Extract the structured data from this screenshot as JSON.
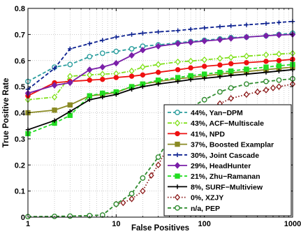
{
  "chart_data": {
    "type": "line",
    "xlabel": "False Positives",
    "ylabel": "True Positive Rate",
    "xscale": "log",
    "xlim": [
      1,
      1000
    ],
    "ylim": [
      0,
      0.8
    ],
    "grid": true,
    "legend_position": "bottom-right",
    "x_ticks": [
      {
        "value": 1,
        "label": "1"
      },
      {
        "value": 10,
        "label": "10"
      },
      {
        "value": 100,
        "label": "100"
      },
      {
        "value": 1000,
        "label": "1000"
      }
    ],
    "y_ticks": [
      {
        "value": 0,
        "label": "0"
      },
      {
        "value": 0.1,
        "label": "0.1"
      },
      {
        "value": 0.2,
        "label": "0.2"
      },
      {
        "value": 0.3,
        "label": "0.3"
      },
      {
        "value": 0.4,
        "label": "0.4"
      },
      {
        "value": 0.5,
        "label": "0.5"
      },
      {
        "value": 0.6,
        "label": "0.6"
      },
      {
        "value": 0.7,
        "label": "0.7"
      },
      {
        "value": 0.8,
        "label": "0.8"
      }
    ],
    "series": [
      {
        "name": "44%, Yan−DPM",
        "color": "#2a9d9d",
        "dash": "dashed",
        "marker": "circle-open",
        "x": [
          1,
          2,
          3,
          5,
          7,
          10,
          15,
          20,
          30,
          50,
          70,
          100,
          150,
          200,
          300,
          500,
          700,
          1000
        ],
        "y": [
          0.52,
          0.575,
          0.585,
          0.615,
          0.628,
          0.635,
          0.645,
          0.655,
          0.66,
          0.668,
          0.673,
          0.678,
          0.683,
          0.688,
          0.69,
          0.695,
          0.7,
          0.705
        ]
      },
      {
        "name": "43%, ACF−Multiscale",
        "color": "#7fe01a",
        "dash": "dashdot",
        "marker": "diamond",
        "x": [
          1,
          2,
          3,
          5,
          7,
          10,
          15,
          20,
          30,
          50,
          70,
          100,
          150,
          200,
          300,
          500,
          700,
          1000
        ],
        "y": [
          0.45,
          0.46,
          0.54,
          0.545,
          0.548,
          0.55,
          0.56,
          0.575,
          0.585,
          0.595,
          0.598,
          0.603,
          0.608,
          0.612,
          0.617,
          0.622,
          0.625,
          0.628
        ]
      },
      {
        "name": "41%, NPD",
        "color": "#ee1111",
        "dash": "solid",
        "marker": "circle-filled",
        "x": [
          1,
          2,
          3,
          5,
          7,
          10,
          15,
          20,
          30,
          50,
          70,
          100,
          150,
          200,
          300,
          500,
          700,
          1000
        ],
        "y": [
          0.465,
          0.515,
          0.52,
          0.525,
          0.528,
          0.535,
          0.54,
          0.545,
          0.555,
          0.565,
          0.572,
          0.578,
          0.583,
          0.588,
          0.592,
          0.597,
          0.6,
          0.605
        ]
      },
      {
        "name": "37%, Boosted Examplar",
        "color": "#8a8a24",
        "dash": "solid",
        "marker": "square-filled",
        "x": [
          1,
          2,
          3,
          5,
          7,
          10,
          15,
          20,
          30,
          50,
          70,
          100,
          150,
          200,
          300,
          500,
          700,
          1000
        ],
        "y": [
          0.4,
          0.41,
          0.43,
          0.465,
          0.47,
          0.478,
          0.5,
          0.51,
          0.52,
          0.53,
          0.535,
          0.542,
          0.548,
          0.553,
          0.558,
          0.565,
          0.57,
          0.575
        ]
      },
      {
        "name": "30%, Joint Cascade",
        "color": "#0a1f8f",
        "dash": "dashed",
        "marker": "plus",
        "x": [
          1,
          2,
          3,
          5,
          7,
          10,
          15,
          20,
          30,
          50,
          70,
          100,
          150,
          200,
          300,
          500,
          700,
          1000
        ],
        "y": [
          0.49,
          0.57,
          0.645,
          0.665,
          0.678,
          0.69,
          0.7,
          0.705,
          0.71,
          0.715,
          0.72,
          0.725,
          0.73,
          0.733,
          0.737,
          0.742,
          0.746,
          0.75
        ]
      },
      {
        "name": "29%, HeadHunter",
        "color": "#7a1fa8",
        "dash": "solid",
        "marker": "diamond-filled",
        "x": [
          1,
          2,
          3,
          5,
          7,
          10,
          15,
          20,
          30,
          50,
          70,
          100,
          150,
          200,
          300,
          500,
          700,
          1000
        ],
        "y": [
          0.475,
          0.505,
          0.515,
          0.565,
          0.575,
          0.59,
          0.62,
          0.64,
          0.655,
          0.665,
          0.67,
          0.675,
          0.68,
          0.685,
          0.69,
          0.695,
          0.698,
          0.7
        ]
      },
      {
        "name": "21%, Zhu−Ramanan",
        "color": "#22dd22",
        "dash": "dashed",
        "marker": "square-filled",
        "x": [
          1,
          2,
          3,
          5,
          7,
          10,
          15,
          20,
          30,
          50,
          70,
          100,
          150,
          200,
          300,
          500,
          700,
          1000
        ],
        "y": [
          0.32,
          0.36,
          0.39,
          0.465,
          0.475,
          0.48,
          0.5,
          0.51,
          0.525,
          0.535,
          0.542,
          0.548,
          0.555,
          0.56,
          0.567,
          0.575,
          0.58,
          0.585
        ]
      },
      {
        "name": "8%, SURF−Multiview",
        "color": "#000000",
        "dash": "solid",
        "marker": "plus",
        "x": [
          1,
          2,
          3,
          5,
          7,
          10,
          15,
          20,
          30,
          50,
          70,
          100,
          150,
          200,
          300,
          500,
          700,
          1000
        ],
        "y": [
          0.335,
          0.37,
          0.405,
          0.45,
          0.46,
          0.47,
          0.49,
          0.5,
          0.51,
          0.52,
          0.527,
          0.532,
          0.538,
          0.543,
          0.548,
          0.555,
          0.56,
          0.565
        ]
      },
      {
        "name": "0%, XZJY",
        "color": "#8b1a1a",
        "dash": "dotted",
        "marker": "diamond",
        "x": [
          10,
          12,
          15,
          20,
          25,
          30,
          40,
          50,
          70,
          100,
          150,
          200,
          300,
          400,
          500,
          600,
          700,
          1000
        ],
        "y": [
          0.05,
          0.055,
          0.07,
          0.1,
          0.16,
          0.2,
          0.28,
          0.33,
          0.38,
          0.41,
          0.435,
          0.455,
          0.47,
          0.48,
          0.487,
          0.495,
          0.5,
          0.51
        ]
      },
      {
        "name": "n/a, PEP",
        "color": "#2e8b2e",
        "dash": "dashed",
        "marker": "circle-open",
        "x": [
          1,
          2,
          3,
          5,
          7,
          10,
          15,
          20,
          30,
          40,
          50,
          70,
          100,
          150,
          200,
          300,
          500,
          700,
          1000
        ],
        "y": [
          0.002,
          0.003,
          0.004,
          0.006,
          0.008,
          0.05,
          0.09,
          0.15,
          0.23,
          0.3,
          0.36,
          0.42,
          0.45,
          0.48,
          0.495,
          0.51,
          0.52,
          0.525,
          0.53
        ]
      }
    ]
  }
}
